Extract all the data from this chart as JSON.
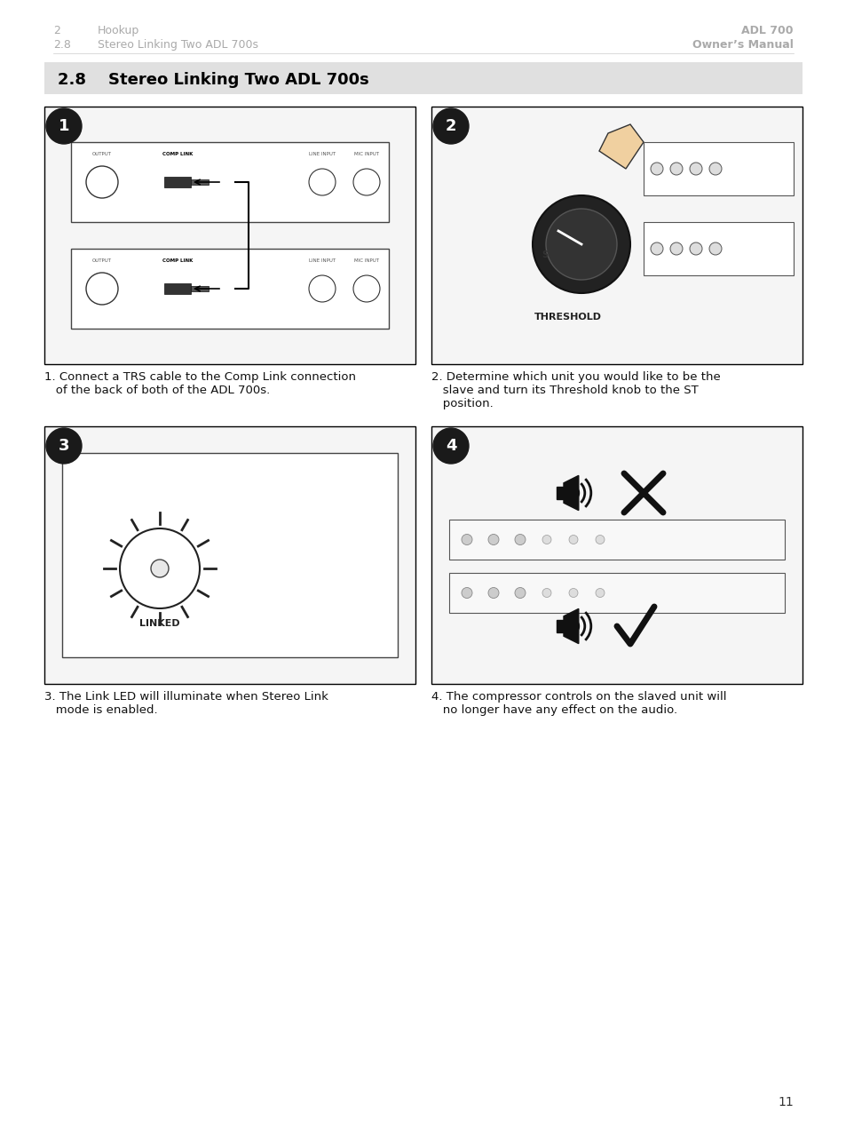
{
  "page_num": "11",
  "header_left_line1": "2",
  "header_left_line1_text": "Hookup",
  "header_left_line2": "2.8",
  "header_left_line2_text": "Stereo Linking Two ADL 700s",
  "header_right_line1": "ADL 700",
  "header_right_line2": "Owner’s Manual",
  "section_number": "2.8",
  "section_title": "Stereo Linking Two ADL 700s",
  "caption1": "1. Connect a TRS cable to the Comp Link connection\n   of the back of both of the ADL 700s.",
  "caption2": "2. Determine which unit you would like to be the\n   slave and turn its Threshold knob to the ST\n   position.",
  "caption3": "3. The Link LED will illuminate when Stereo Link\n   mode is enabled.",
  "caption4": "4. The compressor controls on the slaved unit will\n   no longer have any effect on the audio.",
  "bg_color": "#ffffff",
  "header_color": "#aaaaaa",
  "section_bg": "#e0e0e0",
  "section_text_color": "#000000",
  "image_border_color": "#000000",
  "circle_color": "#1a1a1a",
  "circle_text_color": "#ffffff"
}
